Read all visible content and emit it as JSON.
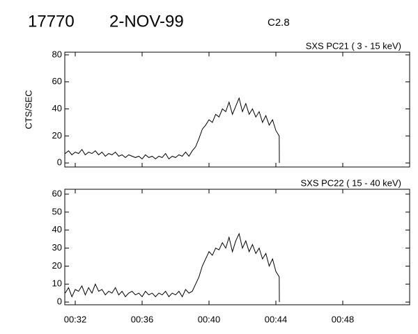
{
  "header": {
    "id": "17770",
    "date": "2-NOV-99",
    "class": "C2.8"
  },
  "chart_data": [
    {
      "type": "line",
      "title": "SXS PC21  (  3 - 15 keV)",
      "y_label": "CTS/SEC",
      "x": [
        31.4,
        31.6,
        31.8,
        32.0,
        32.2,
        32.4,
        32.6,
        32.8,
        33.0,
        33.2,
        33.4,
        33.6,
        33.8,
        34.0,
        34.2,
        34.4,
        34.6,
        34.8,
        35.0,
        35.2,
        35.4,
        35.6,
        35.8,
        36.0,
        36.2,
        36.4,
        36.6,
        36.8,
        37.0,
        37.2,
        37.4,
        37.6,
        37.8,
        38.0,
        38.2,
        38.4,
        38.6,
        38.8,
        39.0,
        39.2,
        39.4,
        39.6,
        39.8,
        40.0,
        40.2,
        40.4,
        40.6,
        40.8,
        41.0,
        41.2,
        41.4,
        41.6,
        41.8,
        42.0,
        42.2,
        42.4,
        42.6,
        42.8,
        43.0,
        43.2,
        43.4,
        43.6,
        43.8,
        44.0,
        44.2,
        44.21
      ],
      "series": [
        {
          "color": "#000000",
          "values": [
            7,
            9,
            6,
            8,
            7,
            10,
            6,
            8,
            7,
            9,
            6,
            8,
            5,
            7,
            6,
            8,
            5,
            6,
            4,
            6,
            5,
            4,
            5,
            3,
            6,
            4,
            5,
            3,
            5,
            4,
            7,
            3,
            5,
            4,
            6,
            5,
            8,
            5,
            9,
            12,
            18,
            25,
            28,
            32,
            30,
            36,
            34,
            40,
            38,
            45,
            36,
            42,
            48,
            38,
            44,
            36,
            40,
            34,
            38,
            30,
            35,
            28,
            32,
            24,
            20,
            0
          ]
        }
      ],
      "xlim": [
        31.375,
        52
      ],
      "xticks": [
        32,
        36,
        40,
        44,
        48
      ],
      "ylim": [
        -3,
        82
      ],
      "yticks": [
        0,
        20,
        40,
        60,
        80
      ]
    },
    {
      "type": "line",
      "title": "SXS PC22  ( 15 - 40 keV)",
      "x": [
        31.4,
        31.6,
        31.8,
        32.0,
        32.2,
        32.4,
        32.6,
        32.8,
        33.0,
        33.2,
        33.4,
        33.6,
        33.8,
        34.0,
        34.2,
        34.4,
        34.6,
        34.8,
        35.0,
        35.2,
        35.4,
        35.6,
        35.8,
        36.0,
        36.2,
        36.4,
        36.6,
        36.8,
        37.0,
        37.2,
        37.4,
        37.6,
        37.8,
        38.0,
        38.2,
        38.4,
        38.6,
        38.8,
        39.0,
        39.2,
        39.4,
        39.6,
        39.8,
        40.0,
        40.2,
        40.4,
        40.6,
        40.8,
        41.0,
        41.2,
        41.4,
        41.6,
        41.8,
        42.0,
        42.2,
        42.4,
        42.6,
        42.8,
        43.0,
        43.2,
        43.4,
        43.6,
        43.8,
        44.0,
        44.2,
        44.21
      ],
      "series": [
        {
          "color": "#000000",
          "values": [
            5,
            8,
            3,
            7,
            6,
            9,
            4,
            8,
            5,
            10,
            6,
            7,
            4,
            6,
            5,
            8,
            4,
            6,
            3,
            5,
            6,
            4,
            5,
            3,
            6,
            4,
            5,
            3,
            5,
            4,
            6,
            3,
            5,
            4,
            6,
            3,
            7,
            5,
            6,
            10,
            14,
            20,
            24,
            28,
            26,
            30,
            29,
            33,
            30,
            36,
            28,
            34,
            38,
            30,
            34,
            28,
            32,
            27,
            30,
            24,
            27,
            20,
            24,
            17,
            14,
            0
          ]
        }
      ],
      "xlim": [
        31.375,
        52
      ],
      "xticks": [
        {
          "value": 32,
          "label": "00:32"
        },
        {
          "value": 36,
          "label": "00:36"
        },
        {
          "value": 40,
          "label": "00:40"
        },
        {
          "value": 44,
          "label": "00:44"
        },
        {
          "value": 48,
          "label": "00:48"
        }
      ],
      "ylim": [
        -1.5,
        62.7
      ],
      "yticks": [
        0,
        10,
        20,
        30,
        40,
        50,
        60
      ]
    }
  ]
}
